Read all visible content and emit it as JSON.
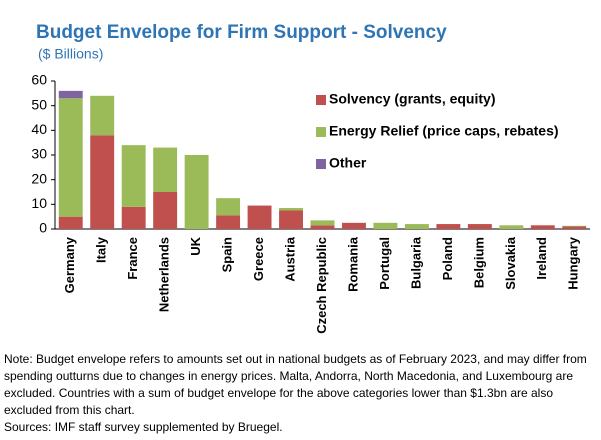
{
  "chart_data": {
    "type": "stacked_bar",
    "title": "Budget Envelope for Firm Support - Solvency",
    "subtitle": "($ Billions)",
    "categories": [
      "Germany",
      "Italy",
      "France",
      "Netherlands",
      "UK",
      "Spain",
      "Greece",
      "Austria",
      "Czech Republic",
      "Romania",
      "Portugal",
      "Bulgaria",
      "Poland",
      "Belgium",
      "Slovakia",
      "Ireland",
      "Hungary"
    ],
    "series": [
      {
        "name": "Solvency (grants, equity)",
        "color": "#c0504d",
        "values": [
          5,
          38,
          9,
          15,
          0,
          5.5,
          9.5,
          7.5,
          1.5,
          2.5,
          0,
          0,
          2,
          2,
          0,
          1.5,
          1
        ]
      },
      {
        "name": "Energy Relief (price caps, rebates)",
        "color": "#9bbb59",
        "values": [
          48,
          16,
          25,
          18,
          30,
          7,
          0,
          1,
          2,
          0,
          2.5,
          2,
          0,
          0,
          1.5,
          0,
          0.3
        ]
      },
      {
        "name": "Other",
        "color": "#8064a2",
        "values": [
          3,
          0,
          0,
          0,
          0,
          0,
          0,
          0,
          0,
          0,
          0,
          0,
          0,
          0,
          0,
          0,
          0
        ]
      }
    ],
    "ylim": [
      0,
      60
    ],
    "yticks": [
      0,
      10,
      20,
      30,
      40,
      50,
      60
    ],
    "grid": false,
    "legend": "upper right",
    "note": "Note: Budget envelope refers to amounts set out in national budgets as of February 2023, and may differ from spending outturns due to changes in energy prices. Malta, Andorra, North Macedonia, and Luxembourg are excluded. Countries with a sum of budget envelope for the above categories lower than $1.3bn are also excluded from this chart.",
    "sources": "Sources: IMF staff survey supplemented by Bruegel."
  }
}
